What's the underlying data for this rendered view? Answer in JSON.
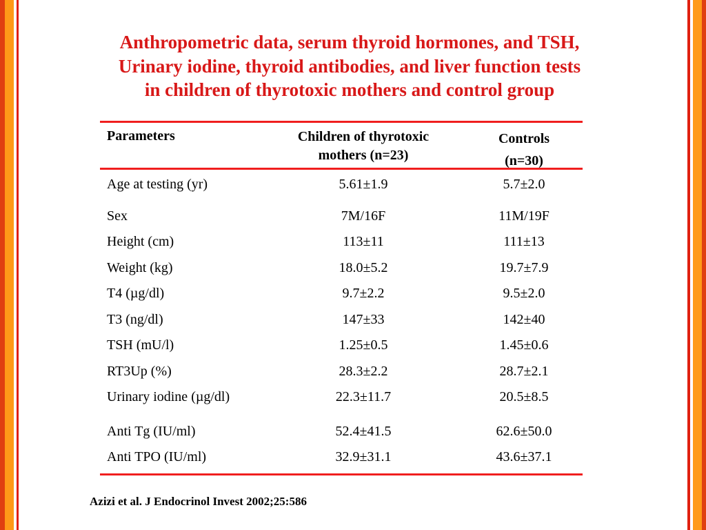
{
  "title": {
    "line1": "Anthropometric data, serum thyroid hormones, and TSH,",
    "line2": "Urinary iodine, thyroid antibodies, and liver function tests",
    "line3": "in children of thyrotoxic mothers and control group"
  },
  "table": {
    "headers": {
      "parameters": "Parameters",
      "group1_line1": "Children of thyrotoxic",
      "group1_line2": "mothers (n=23)",
      "group2_line1": "Controls",
      "group2_line2": "(n=30)"
    },
    "rows": [
      {
        "param": "Age at testing (yr)",
        "group1": "5.61±1.9",
        "group2": "5.7±2.0"
      },
      {
        "param": "Sex",
        "group1": "7M/16F",
        "group2": "11M/19F"
      },
      {
        "param": "Height (cm)",
        "group1": "113±11",
        "group2": "111±13"
      },
      {
        "param": "Weight (kg)",
        "group1": "18.0±5.2",
        "group2": "19.7±7.9"
      },
      {
        "param": "T4 (µg/dl)",
        "group1": "9.7±2.2",
        "group2": "9.5±2.0"
      },
      {
        "param": "T3 (ng/dl)",
        "group1": "147±33",
        "group2": "142±40"
      },
      {
        "param": "TSH (mU/l)",
        "group1": "1.25±0.5",
        "group2": "1.45±0.6"
      },
      {
        "param": "RT3Up (%)",
        "group1": "28.3±2.2",
        "group2": "28.7±2.1"
      },
      {
        "param": "Urinary iodine (µg/dl)",
        "group1": "22.3±11.7",
        "group2": "20.5±8.5"
      },
      {
        "param": "Anti Tg (IU/ml)",
        "group1": "52.4±41.5",
        "group2": "62.6±50.0"
      },
      {
        "param": "Anti TPO (IU/ml)",
        "group1": "32.9±31.1",
        "group2": "43.6±37.1"
      }
    ]
  },
  "citation": "Azizi et al. J Endocrinol Invest 2002;25:586",
  "colors": {
    "title": "#d81818",
    "rules": "#f01e1e",
    "border_orange": "#ff9a18",
    "border_red": "#e04010"
  }
}
